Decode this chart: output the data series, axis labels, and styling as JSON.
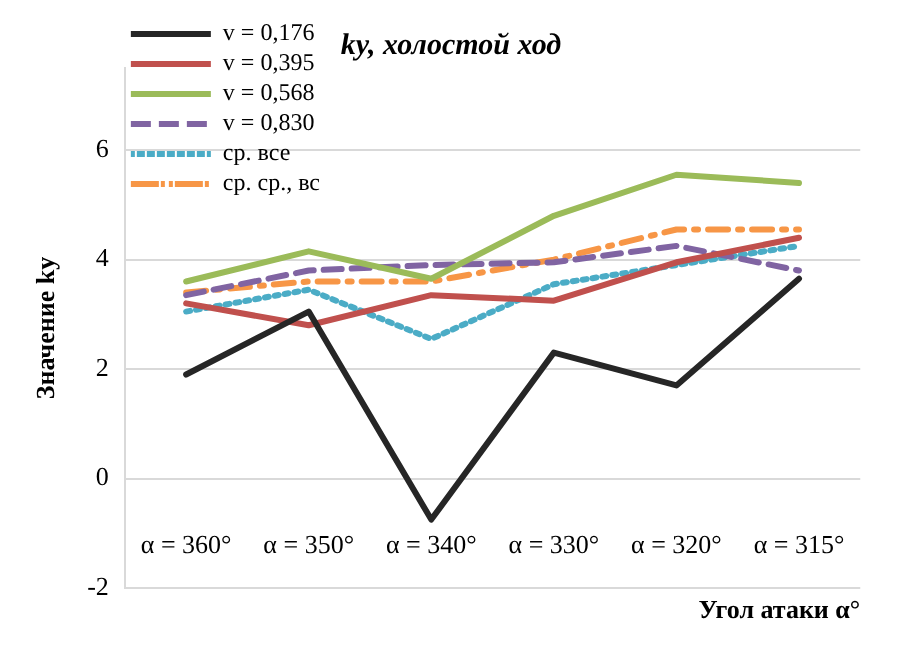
{
  "chart_data": {
    "type": "line",
    "title": "ky, холостой ход",
    "xlabel": "Угол атаки α°",
    "ylabel": "Значение ky",
    "categories": [
      "α = 360°",
      "α = 350°",
      "α = 340°",
      "α = 330°",
      "α = 320°",
      "α = 315°"
    ],
    "series": [
      {
        "name": "v = 0,176",
        "color": "#262626",
        "values": [
          1.9,
          3.05,
          -0.75,
          2.3,
          1.7,
          3.65
        ],
        "line_style": "solid"
      },
      {
        "name": "v = 0,395",
        "color": "#c0504d",
        "values": [
          3.2,
          2.8,
          3.35,
          3.25,
          3.95,
          4.4
        ],
        "line_style": "solid"
      },
      {
        "name": "v = 0,568",
        "color": "#9bbb59",
        "values": [
          3.6,
          4.15,
          3.65,
          4.8,
          5.55,
          5.4
        ],
        "line_style": "solid"
      },
      {
        "name": "v = 0,830",
        "color": "#8064a2",
        "values": [
          3.35,
          3.8,
          3.9,
          3.95,
          4.25,
          3.8
        ],
        "line_style": "dashed"
      },
      {
        "name": "ср. все",
        "color": "#4bacc6",
        "values": [
          3.05,
          3.45,
          2.55,
          3.55,
          3.9,
          4.25
        ],
        "line_style": "dotted"
      },
      {
        "name": "ср. ср., вс",
        "color": "#f79646",
        "values": [
          3.4,
          3.6,
          3.6,
          4.0,
          4.55,
          4.55
        ],
        "line_style": "dashdot"
      }
    ],
    "ylim": [
      -2,
      7.5
    ],
    "yticks": [
      -2,
      0,
      2,
      4,
      6
    ],
    "grid": "y",
    "legend": "top left",
    "marker": "none"
  }
}
